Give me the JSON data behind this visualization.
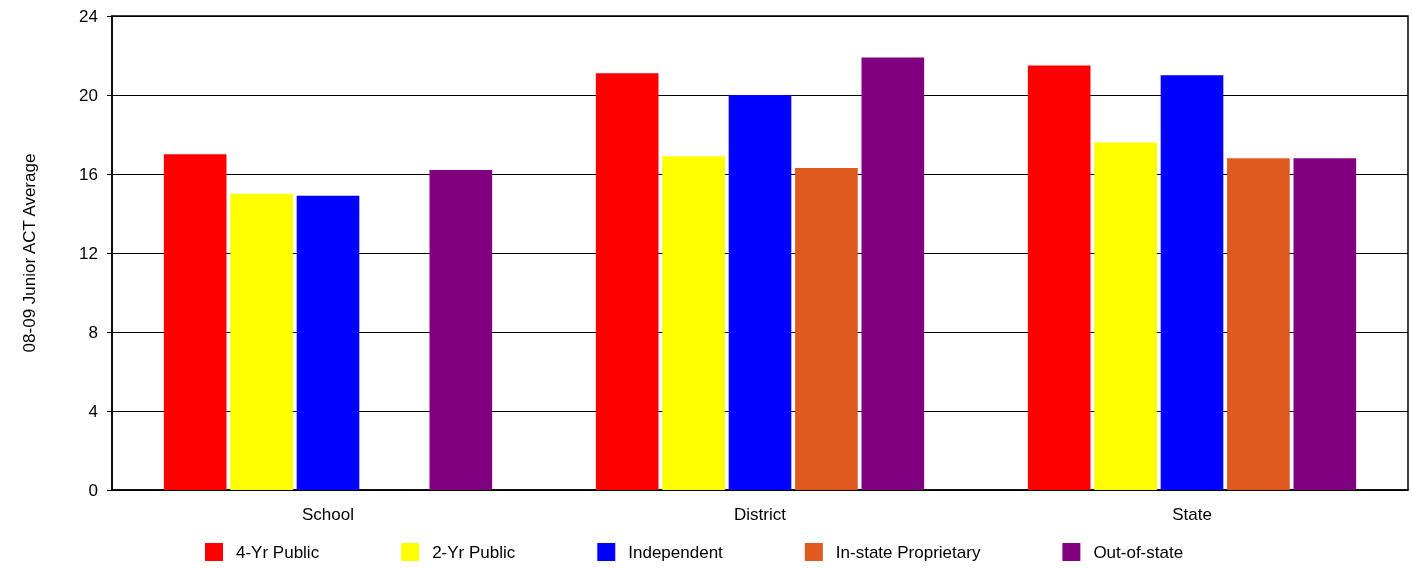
{
  "chart_data": {
    "type": "bar",
    "ylabel": "08-09 Junior ACT Average",
    "categories": [
      "School",
      "District",
      "State"
    ],
    "series": [
      {
        "name": "4-Yr Public",
        "color": "#ff0000",
        "values": [
          17.0,
          21.1,
          21.5
        ]
      },
      {
        "name": "2-Yr Public",
        "color": "#ffff00",
        "values": [
          15.0,
          16.9,
          17.6
        ]
      },
      {
        "name": "Independent",
        "color": "#0000ff",
        "values": [
          14.9,
          20.0,
          21.0
        ]
      },
      {
        "name": "In-state Proprietary",
        "color": "#e05a20",
        "values": [
          null,
          16.3,
          16.8
        ]
      },
      {
        "name": "Out-of-state",
        "color": "#800080",
        "values": [
          16.2,
          21.9,
          16.8
        ]
      }
    ],
    "ylim": [
      0,
      24
    ],
    "yticks": [
      0,
      4,
      8,
      12,
      16,
      20,
      24
    ],
    "grid": "y",
    "legend": "bottom"
  }
}
